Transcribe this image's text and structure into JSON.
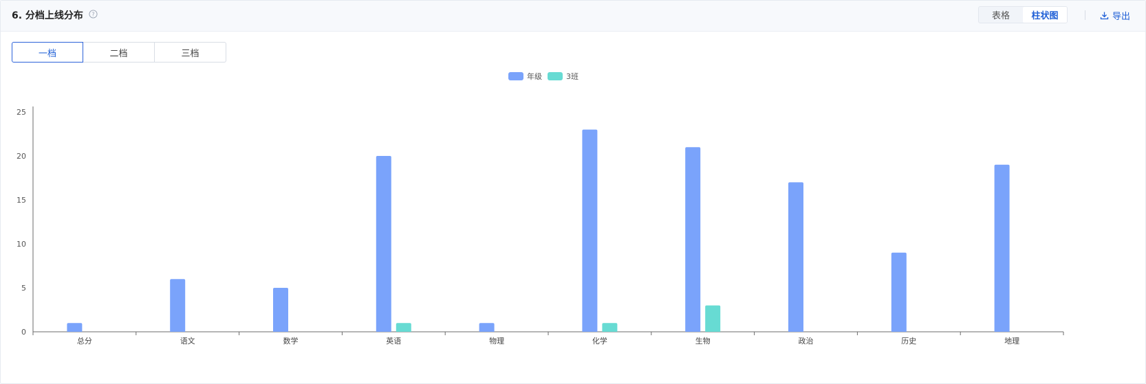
{
  "header": {
    "title": "6. 分档上线分布",
    "view_options": [
      "表格",
      "柱状图"
    ],
    "active_view": 1,
    "export_label": "导出"
  },
  "tiers": {
    "items": [
      "一档",
      "二档",
      "三档"
    ],
    "active": 0
  },
  "colors": {
    "accent": "#1f5fd6",
    "series_grade": "#7aa3fb",
    "series_class": "#67dbd3"
  },
  "chart_data": {
    "type": "bar",
    "categories": [
      "总分",
      "语文",
      "数学",
      "英语",
      "物理",
      "化学",
      "生物",
      "政治",
      "历史",
      "地理"
    ],
    "series": [
      {
        "name": "年级",
        "color": "#7aa3fb",
        "values": [
          1,
          6,
          5,
          20,
          1,
          23,
          21,
          17,
          9,
          19
        ]
      },
      {
        "name": "3班",
        "color": "#67dbd3",
        "values": [
          0,
          0,
          0,
          1,
          0,
          1,
          3,
          0,
          0,
          0
        ]
      }
    ],
    "ylim": [
      0,
      25
    ],
    "yticks": [
      0,
      5,
      10,
      15,
      20,
      25
    ],
    "legend": "top-center",
    "grid": false
  }
}
